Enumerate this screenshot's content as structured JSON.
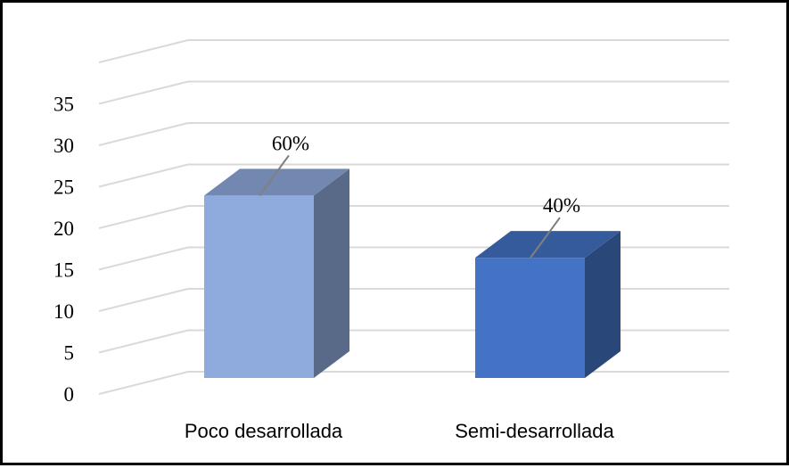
{
  "chart_data": {
    "type": "bar",
    "style": "3d-column",
    "categories": [
      "Poco desarrollada",
      "Semi-desarrollada"
    ],
    "values": [
      22,
      14.5
    ],
    "data_labels": [
      "60%",
      "40%"
    ],
    "colors": [
      "#8faadc",
      "#4472c4"
    ],
    "yticks": [
      0,
      5,
      10,
      15,
      20,
      25,
      30,
      35
    ],
    "ylim": [
      0,
      40
    ],
    "grid": true,
    "legend": "none"
  }
}
